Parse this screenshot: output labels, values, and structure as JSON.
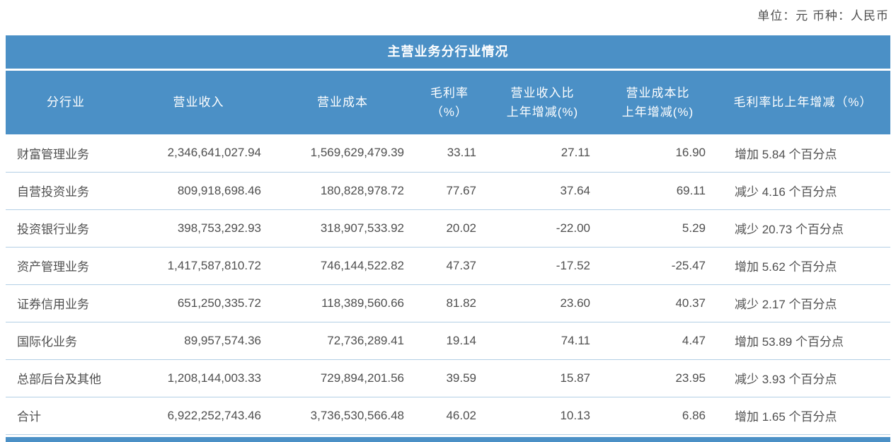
{
  "meta": {
    "unit_note": "单位：元  币种：人民币"
  },
  "table": {
    "title": "主营业务分行业情况",
    "column_keys": [
      "industry",
      "revenue",
      "cost",
      "gross-margin",
      "revenue-yoy-change",
      "cost-yoy-change",
      "gross-margin-yoy-change"
    ],
    "columns": [
      "分行业",
      "营业收入",
      "营业成本",
      "毛利率\n（%）",
      "营业收入比\n上年增减(%)",
      "营业成本比\n上年增减(%)",
      "毛利率比上年增减（%）"
    ],
    "rows": [
      [
        "财富管理业务",
        "2,346,641,027.94",
        "1,569,629,479.39",
        "33.11",
        "27.11",
        "16.90",
        "增加 5.84 个百分点"
      ],
      [
        "自营投资业务",
        "809,918,698.46",
        "180,828,978.72",
        "77.67",
        "37.64",
        "69.11",
        "减少 4.16 个百分点"
      ],
      [
        "投资银行业务",
        "398,753,292.93",
        "318,907,533.92",
        "20.02",
        "-22.00",
        "5.29",
        "减少 20.73 个百分点"
      ],
      [
        "资产管理业务",
        "1,417,587,810.72",
        "746,144,522.82",
        "47.37",
        "-17.52",
        "-25.47",
        "增加 5.62 个百分点"
      ],
      [
        "证券信用业务",
        "651,250,335.72",
        "118,389,560.66",
        "81.82",
        "23.60",
        "40.37",
        "减少 2.17 个百分点"
      ],
      [
        "国际化业务",
        "89,957,574.36",
        "72,736,289.41",
        "19.14",
        "74.11",
        "4.47",
        "增加 53.89 个百分点"
      ],
      [
        "总部后台及其他",
        "1,208,144,003.33",
        "729,894,201.56",
        "39.59",
        "15.87",
        "23.95",
        "减少 3.93 个百分点"
      ],
      [
        "合计",
        "6,922,252,743.46",
        "3,736,530,566.48",
        "46.02",
        "10.13",
        "6.86",
        "增加 1.65 个百分点"
      ]
    ],
    "colors": {
      "header_bg": "#4b90c6",
      "row_divider": "#b3cfe5",
      "body_text": "#4f4f4f",
      "header_text": "#ffffff"
    }
  }
}
